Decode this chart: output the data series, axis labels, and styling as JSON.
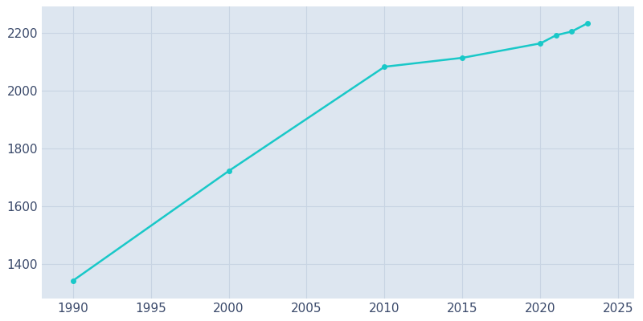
{
  "years": [
    1990,
    2000,
    2010,
    2015,
    2020,
    2021,
    2022,
    2023
  ],
  "population": [
    1341,
    1721,
    2082,
    2113,
    2163,
    2191,
    2204,
    2232
  ],
  "line_color": "#19C8C8",
  "marker_color": "#19C8C8",
  "fig_bg_color": "#FFFFFF",
  "plot_bg_color": "#DDE6F0",
  "grid_color": "#C8D4E3",
  "tick_color": "#3B4A6B",
  "xlim": [
    1988,
    2026
  ],
  "ylim": [
    1280,
    2290
  ],
  "xticks": [
    1990,
    1995,
    2000,
    2005,
    2010,
    2015,
    2020,
    2025
  ],
  "yticks": [
    1400,
    1600,
    1800,
    2000,
    2200
  ],
  "marker_size": 4,
  "line_width": 1.8
}
